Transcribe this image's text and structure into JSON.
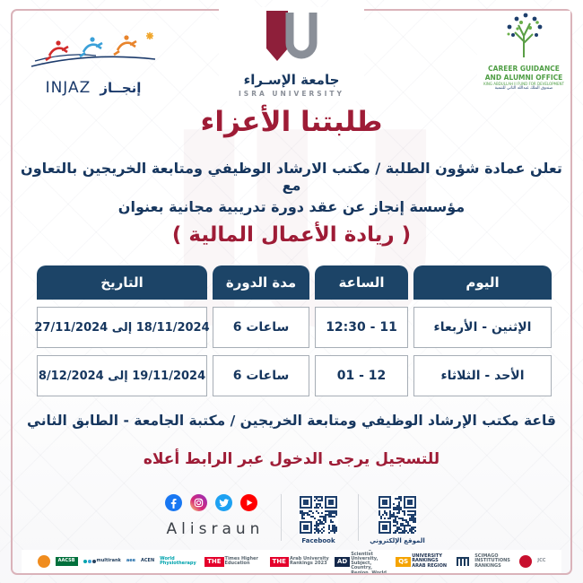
{
  "colors": {
    "maroon": "#9e1c36",
    "navy": "#16365e",
    "table_header_bg": "#1c4467",
    "frame_pink": "#dab3ba"
  },
  "header": {
    "injaz": {
      "latin": "INJAZ",
      "arabic": "إنجــاز"
    },
    "university": {
      "arabic": "جامعة الإسـراء",
      "latin": "ISRA UNIVERSITY"
    },
    "career_office": {
      "line1a": "CAREER GUIDANCE",
      "line1b": "AND ALUMNI OFFICE",
      "line2": "KING ABDULLAH II FUND FOR DEVELOPMENT",
      "line3": "صندوق الملك عبدالله الثاني للتنمية"
    }
  },
  "title": "طلبتنا الأعزاء",
  "announcement": {
    "line1": "تعلن عمادة شؤون الطلبة / مكتب الارشاد الوظيفي ومتابعة الخريجين بالتعاون مع",
    "line2": "مؤسسة إنجاز عن عقد دورة تدريبية مجانية بعنوان"
  },
  "course_title": "( ريادة الأعمال المالية )",
  "schedule_table": {
    "headers": [
      "اليوم",
      "الساعة",
      "مدة الدورة",
      "التاريخ"
    ],
    "col_dirs": [
      "rtl",
      "rtl",
      "ltr",
      "rtl"
    ],
    "rows": [
      [
        "الإثنين - الأربعاء",
        "11 - 12:30",
        "6 ساعات",
        "18/11/2024 إلى 27/11/2024"
      ],
      [
        "الأحد - الثلاثاء",
        "12 - 01",
        "6 ساعات",
        "19/11/2024 إلى 8/12/2024"
      ]
    ]
  },
  "location": "قاعة مكتب الإرشاد الوظيفي ومتابعة الخريجين / مكتبة الجامعة - الطابق الثاني",
  "registration": "للتسجيل يرجى الدخول عبر الرابط أعلاه",
  "social": {
    "handle": "Alisraun",
    "icons": [
      "facebook-icon",
      "instagram-icon",
      "twitter-icon",
      "youtube-icon"
    ],
    "qr1_label": "Facebook",
    "qr2_label": "الموقع الإلكتروني"
  },
  "footer_logos": [
    {
      "name": "seal-orange",
      "shape": "circle",
      "bg": "#f08c1e"
    },
    {
      "name": "aacsb",
      "label": "AACSB",
      "bg": "#00703c",
      "fg": "#ffffff",
      "boxed": true
    },
    {
      "name": "u-multirank",
      "label": "multirank",
      "fg": "#25415f",
      "dots": [
        "#00a3ad",
        "#3aa0d8",
        "#25415f"
      ]
    },
    {
      "name": "aee",
      "label": "aee",
      "fg": "#1766a6"
    },
    {
      "name": "acen",
      "label": "ACEN",
      "fg": "#1b3a5c"
    },
    {
      "name": "world-physiotherapy",
      "label": "World Physiotherapy",
      "fg": "#00a3ad"
    },
    {
      "name": "the-times-higher-education",
      "box": "THE",
      "boxBg": "#e4002b",
      "label": "Times Higher Education",
      "fg": "#5a6770"
    },
    {
      "name": "the-arab-university-rankings",
      "box": "THE",
      "boxBg": "#e4002b",
      "label": "Arab University Rankings 2023",
      "fg": "#5a6770"
    },
    {
      "name": "ad-scientific-index",
      "box": "AD",
      "boxBg": "#14284a",
      "label": "Rankings for Scientist University, Subject, Country, Region, World",
      "fg": "#5a6770"
    },
    {
      "name": "qs-university-rankings",
      "box": "QS",
      "boxBg": "#f5a300",
      "label": "UNIVERSITY RANKINGS ARAB REGION",
      "fg": "#1b2f4e"
    },
    {
      "name": "columns-building",
      "shape": "columns"
    },
    {
      "name": "scimago",
      "label": "SCIMAGO INSTITUTIONS RANKINGS",
      "fg": "#5a6770"
    },
    {
      "name": "seal-red",
      "shape": "circle",
      "bg": "#c8102e"
    },
    {
      "name": "script-gray",
      "label": "JCC",
      "fg": "#8a9199"
    }
  ]
}
